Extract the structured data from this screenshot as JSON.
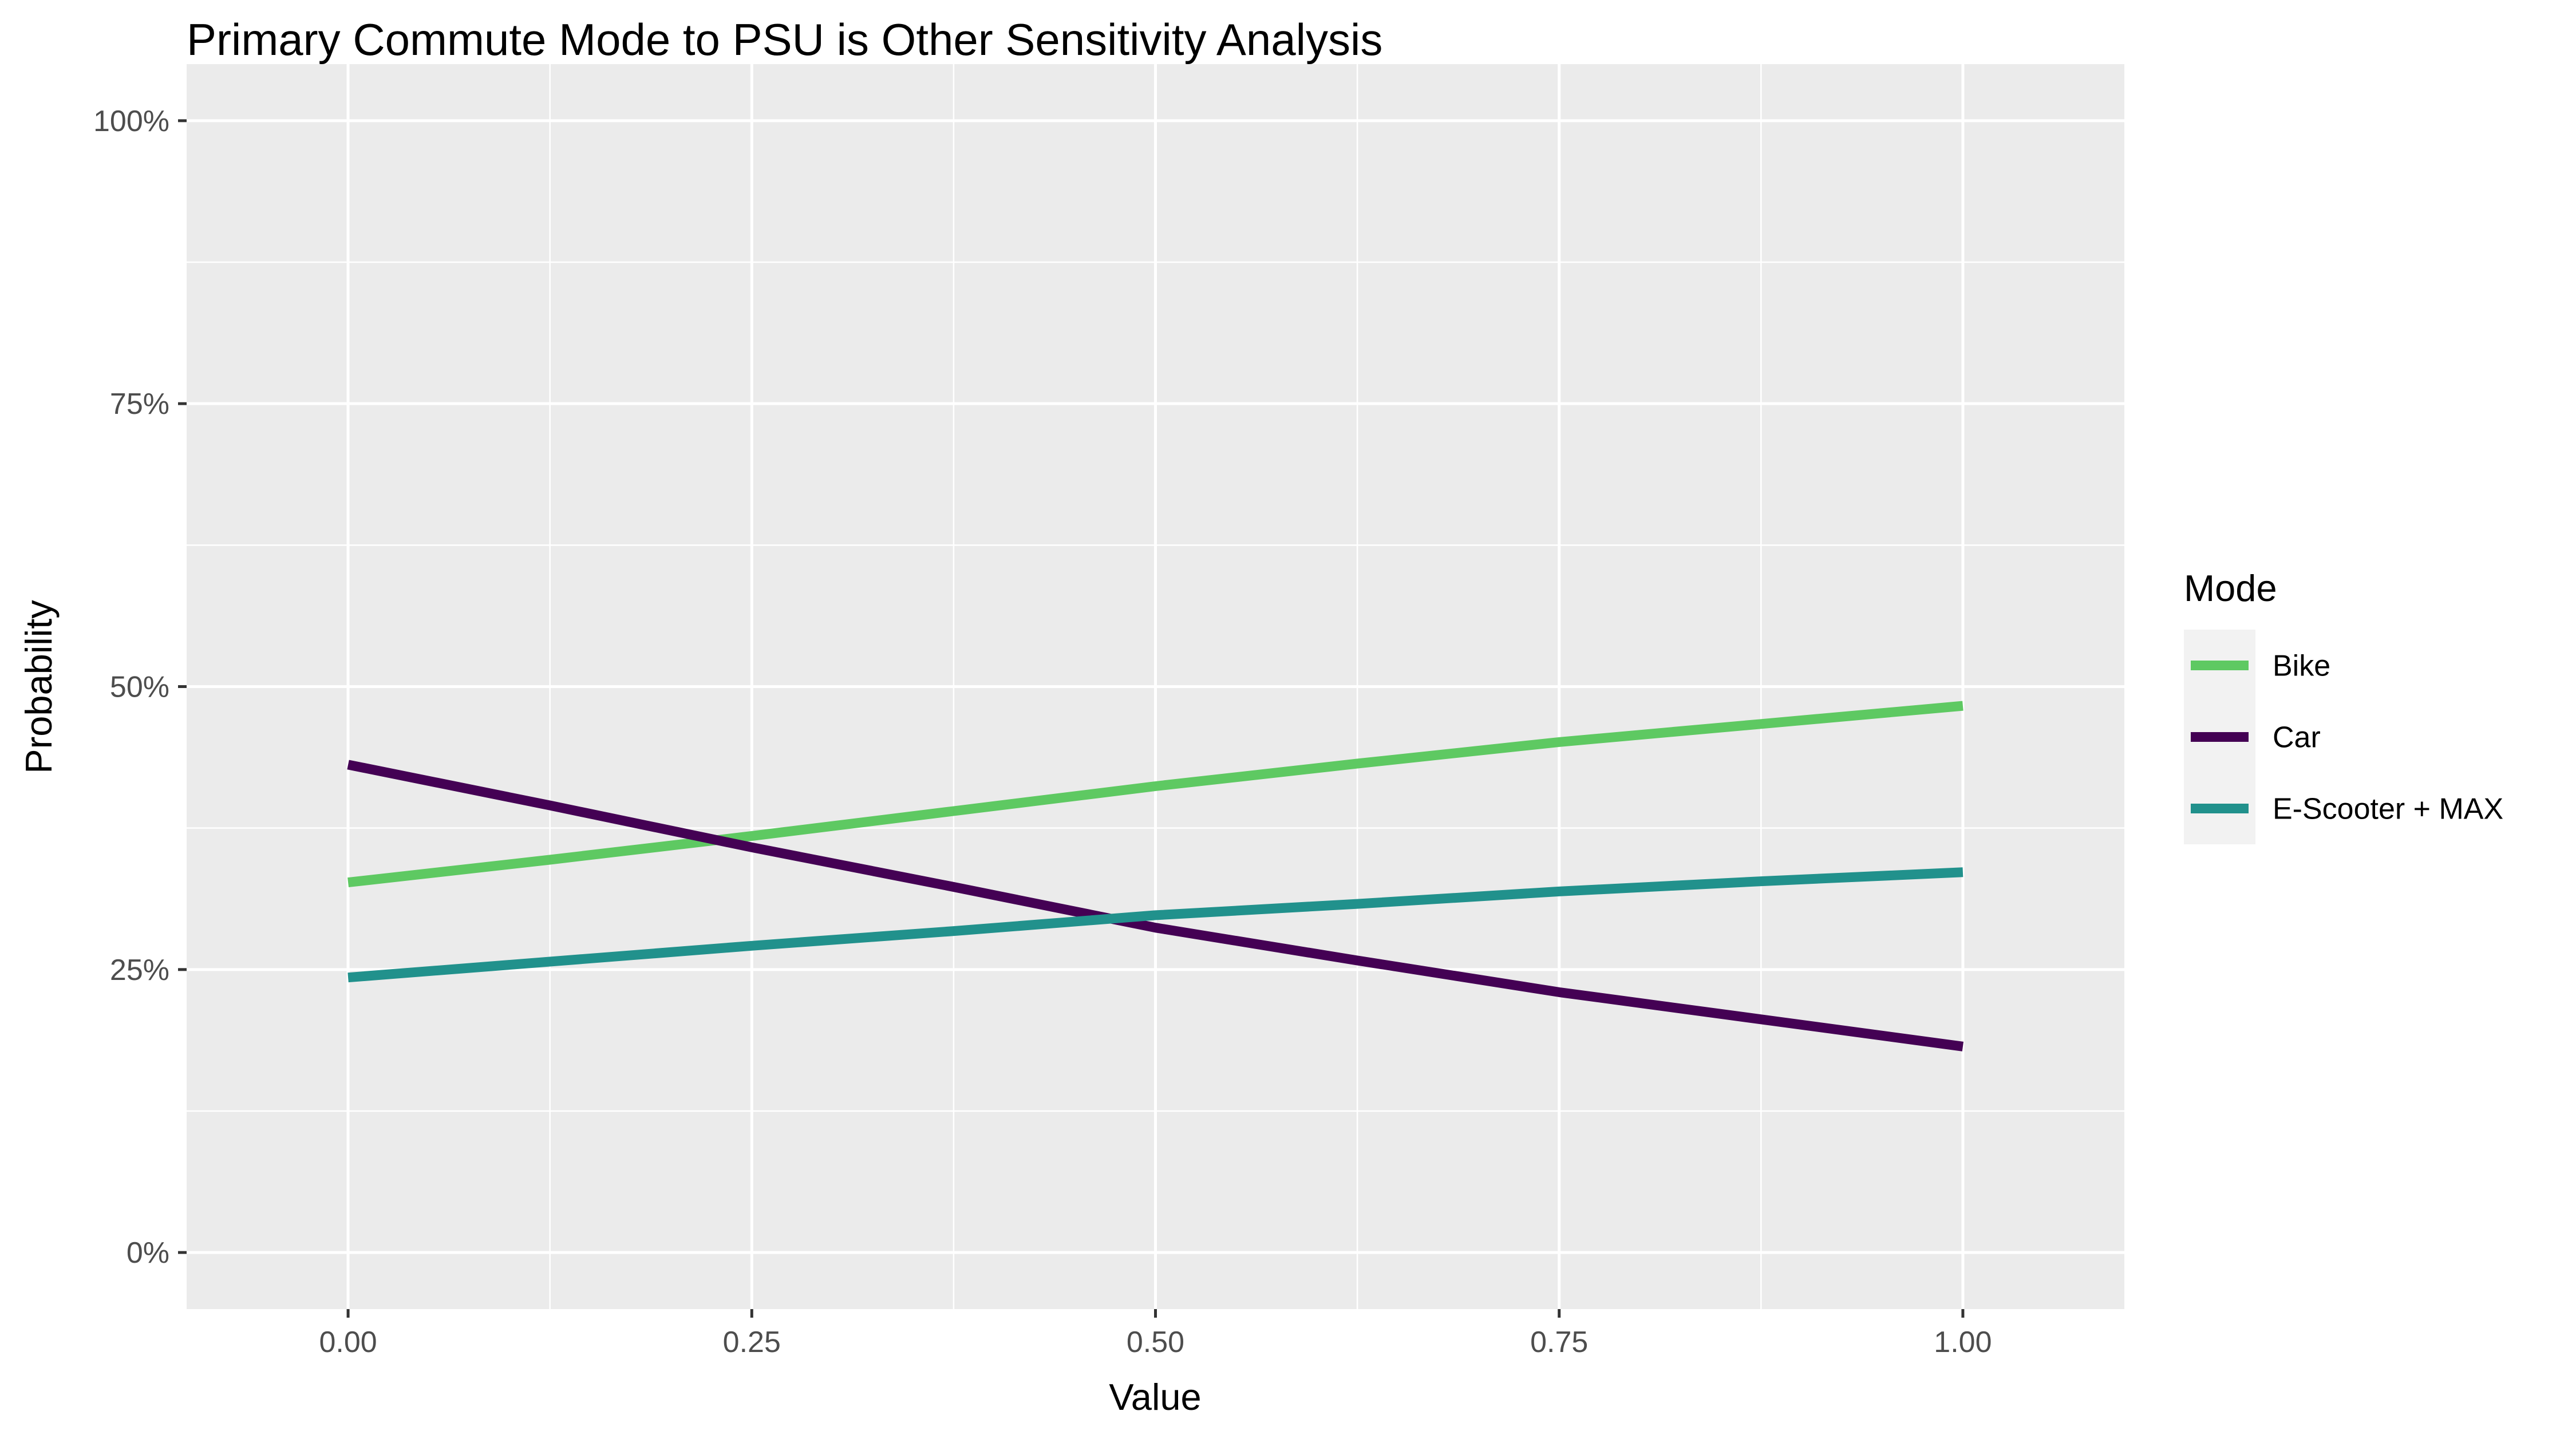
{
  "chart_data": {
    "type": "line",
    "title": "Primary Commute Mode to PSU is Other Sensitivity Analysis",
    "xlabel": "Value",
    "ylabel": "Probability",
    "xlim": [
      -0.1,
      1.1
    ],
    "ylim": [
      -0.05,
      1.05
    ],
    "x_ticks": [
      0.0,
      0.25,
      0.5,
      0.75,
      1.0
    ],
    "x_tick_labels": [
      "0.00",
      "0.25",
      "0.50",
      "0.75",
      "1.00"
    ],
    "y_ticks": [
      0.0,
      0.25,
      0.5,
      0.75,
      1.0
    ],
    "y_tick_labels": [
      "0%",
      "25%",
      "50%",
      "75%",
      "100%"
    ],
    "grid": true,
    "legend": {
      "title": "Mode",
      "position": "right"
    },
    "series": [
      {
        "name": "Bike",
        "color": "#5ec962",
        "x": [
          0.0,
          0.125,
          0.25,
          0.375,
          0.5,
          0.625,
          0.75,
          0.875,
          1.0
        ],
        "y": [
          0.327,
          0.347,
          0.368,
          0.39,
          0.412,
          0.432,
          0.451,
          0.467,
          0.483
        ]
      },
      {
        "name": "Car",
        "color": "#440154",
        "x": [
          0.0,
          0.125,
          0.25,
          0.375,
          0.5,
          0.625,
          0.75,
          0.875,
          1.0
        ],
        "y": [
          0.431,
          0.395,
          0.358,
          0.323,
          0.287,
          0.258,
          0.23,
          0.206,
          0.182
        ]
      },
      {
        "name": "E-Scooter + MAX",
        "color": "#21918c",
        "x": [
          0.0,
          0.125,
          0.25,
          0.375,
          0.5,
          0.625,
          0.75,
          0.875,
          1.0
        ],
        "y": [
          0.243,
          0.257,
          0.271,
          0.284,
          0.298,
          0.308,
          0.319,
          0.328,
          0.336
        ]
      }
    ]
  }
}
